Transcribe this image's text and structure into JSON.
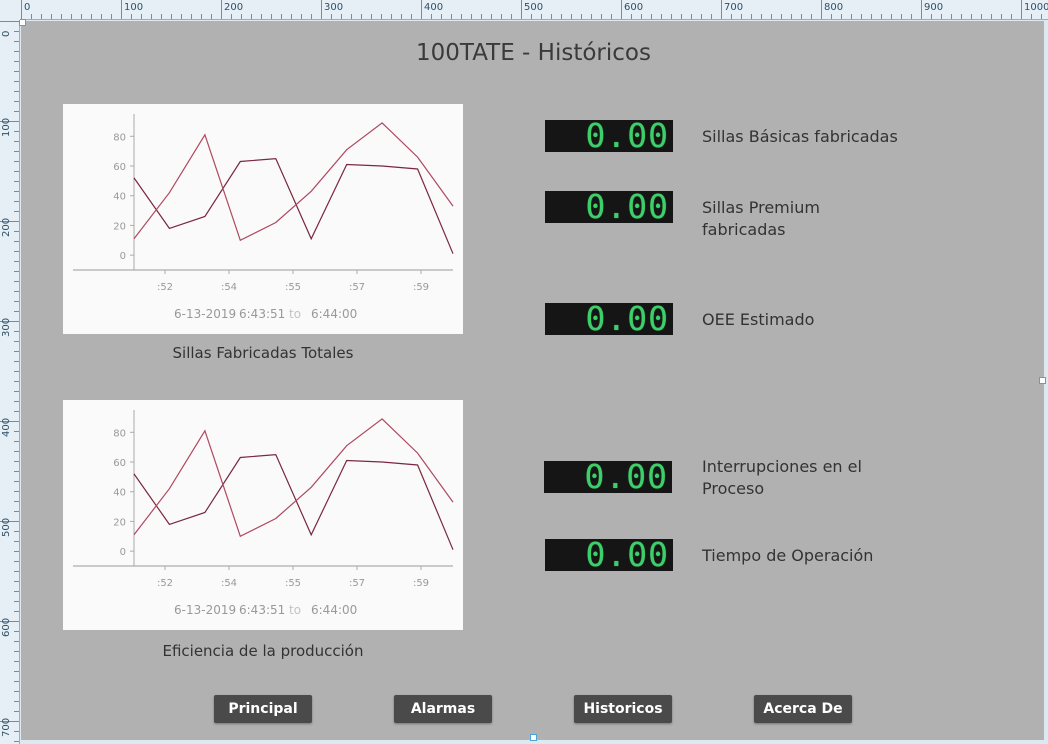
{
  "page": {
    "title": "100TATE - Históricos"
  },
  "rulers": {
    "horizontal_labels": [
      "0",
      "100",
      "200",
      "300",
      "400",
      "500",
      "600",
      "700",
      "800",
      "900",
      "1000"
    ],
    "vertical_labels": [
      "0",
      "100",
      "200",
      "300",
      "400",
      "500",
      "600",
      "700"
    ]
  },
  "charts": [
    {
      "caption": "Sillas Fabricadas Totales",
      "range_date": "6-13-2019",
      "range_start": "6:43:51",
      "range_sep": "to",
      "range_end": "6:44:00"
    },
    {
      "caption": "Eficiencia de la producción",
      "range_date": "6-13-2019",
      "range_start": "6:43:51",
      "range_sep": "to",
      "range_end": "6:44:00"
    }
  ],
  "chart_data": [
    {
      "type": "line",
      "title": "",
      "xlabel": "",
      "ylabel": "",
      "x_ticks": [
        ":52",
        ":54",
        ":55",
        ":57",
        ":59"
      ],
      "x": [
        "6:43:51",
        "6:43:52",
        "6:43:53",
        "6:43:54",
        "6:43:55",
        "6:43:56",
        "6:43:57",
        "6:43:58",
        "6:43:59",
        "6:44:00"
      ],
      "ylim": [
        -10,
        95
      ],
      "y_ticks": [
        0,
        20,
        40,
        60,
        80
      ],
      "grid": false,
      "series": [
        {
          "values": [
            52,
            18,
            26,
            63,
            65,
            11,
            61,
            60,
            58,
            1
          ],
          "color": "#7a2740"
        },
        {
          "values": [
            11,
            42,
            81,
            10,
            22,
            43,
            71,
            89,
            66,
            33
          ],
          "color": "#b0485e"
        }
      ]
    },
    {
      "type": "line",
      "title": "",
      "xlabel": "",
      "ylabel": "",
      "x_ticks": [
        ":52",
        ":54",
        ":55",
        ":57",
        ":59"
      ],
      "x": [
        "6:43:51",
        "6:43:52",
        "6:43:53",
        "6:43:54",
        "6:43:55",
        "6:43:56",
        "6:43:57",
        "6:43:58",
        "6:43:59",
        "6:44:00"
      ],
      "ylim": [
        -10,
        95
      ],
      "y_ticks": [
        0,
        20,
        40,
        60,
        80
      ],
      "grid": false,
      "series": [
        {
          "values": [
            52,
            18,
            26,
            63,
            65,
            11,
            61,
            60,
            58,
            1
          ],
          "color": "#7a2740"
        },
        {
          "values": [
            11,
            42,
            81,
            10,
            22,
            43,
            71,
            89,
            66,
            33
          ],
          "color": "#b0485e"
        }
      ]
    }
  ],
  "metrics": [
    {
      "value": "0.00",
      "label": "Sillas Básicas fabricadas"
    },
    {
      "value": "0.00",
      "label": "Sillas Premium fabricadas"
    },
    {
      "value": "0.00",
      "label": "OEE Estimado"
    },
    {
      "value": "0.00",
      "label": "Interrupciones en el Proceso"
    },
    {
      "value": "0.00",
      "label": "Tiempo de Operación"
    }
  ],
  "nav": {
    "principal": "Principal",
    "alarmas": "Alarmas",
    "historicos": "Historicos",
    "acerca": "Acerca De"
  },
  "colors": {
    "canvas_bg": "#b1b1b1",
    "lcd_bg": "#151515",
    "lcd_digits": "#3fcf6a",
    "button_bg": "#4a4a4a"
  }
}
